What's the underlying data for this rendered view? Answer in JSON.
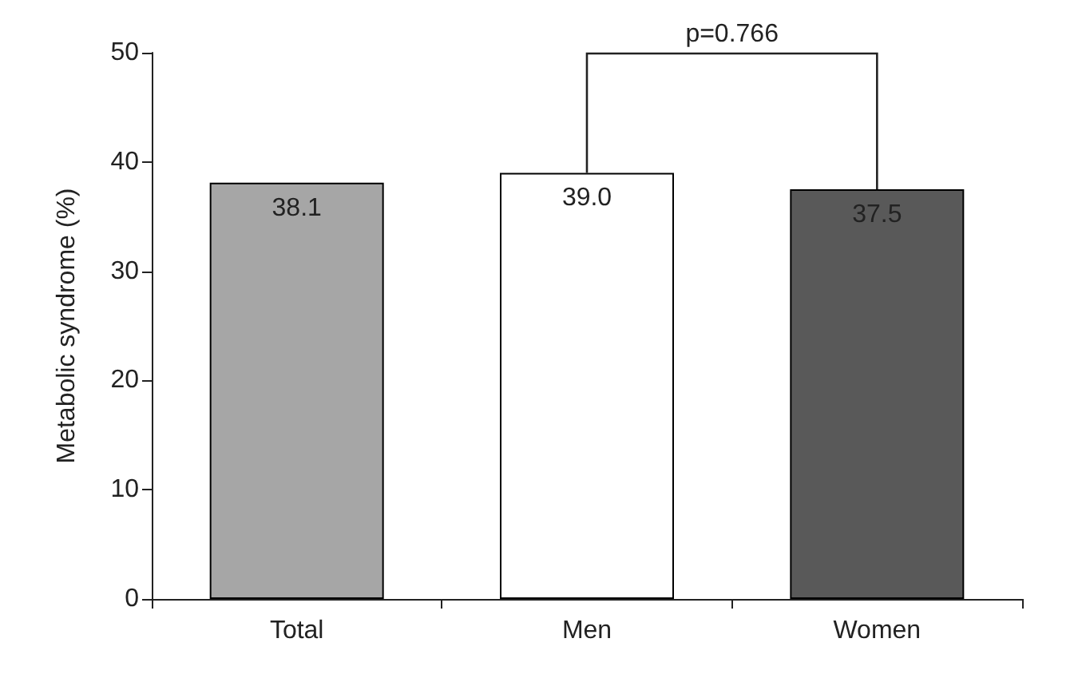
{
  "chart_data": {
    "type": "bar",
    "ylabel": "Metabolic syndrome (%)",
    "categories": [
      "Total",
      "Men",
      "Women"
    ],
    "values": [
      38.1,
      39.0,
      37.5
    ],
    "colors": [
      "#a6a6a6",
      "#ffffff",
      "#595959"
    ],
    "ylim": [
      0,
      50
    ],
    "yticks": [
      0,
      10,
      20,
      30,
      40,
      50
    ],
    "grid": false,
    "value_labels": [
      "38.1",
      "39.0",
      "37.5"
    ],
    "annotations": [
      "p=0.766"
    ]
  }
}
